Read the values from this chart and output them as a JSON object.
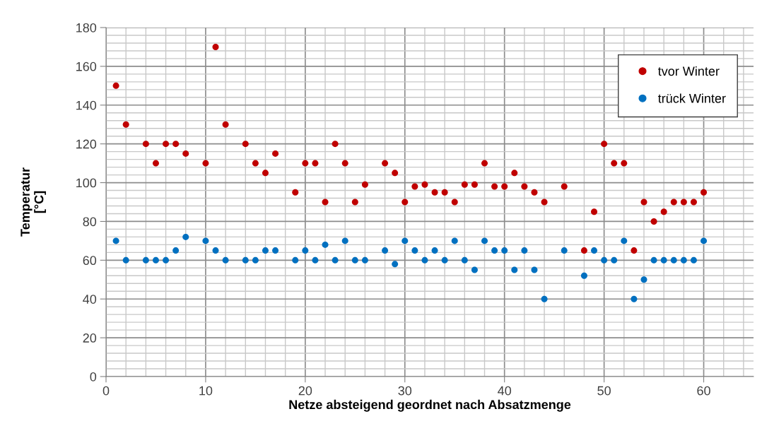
{
  "chart_data": {
    "type": "scatter",
    "xlabel": "Netze absteigend geordnet nach Absatzmenge",
    "ylabel": "Temperatur\n[°C]",
    "x": [
      1,
      2,
      4,
      5,
      6,
      7,
      8,
      10,
      11,
      12,
      14,
      15,
      16,
      17,
      19,
      20,
      21,
      22,
      23,
      24,
      25,
      26,
      28,
      29,
      30,
      31,
      32,
      33,
      34,
      35,
      36,
      37,
      38,
      39,
      40,
      41,
      42,
      43,
      44,
      46,
      48,
      49,
      50,
      51,
      52,
      53,
      54,
      55,
      56,
      57,
      58,
      59,
      60
    ],
    "series": [
      {
        "name": "tvor Winter",
        "color": "#c00000",
        "values": [
          150,
          130,
          120,
          110,
          120,
          120,
          115,
          110,
          170,
          130,
          120,
          110,
          105,
          115,
          95,
          110,
          110,
          90,
          120,
          110,
          90,
          99,
          110,
          105,
          90,
          98,
          99,
          95,
          95,
          90,
          99,
          99,
          110,
          98,
          98,
          105,
          98,
          95,
          90,
          98,
          65,
          85,
          120,
          110,
          110,
          65,
          90,
          80,
          85,
          90,
          90,
          90,
          95
        ]
      },
      {
        "name": "trück Winter",
        "color": "#0070c0",
        "values": [
          70,
          60,
          60,
          60,
          60,
          65,
          72,
          70,
          65,
          60,
          60,
          60,
          65,
          65,
          60,
          65,
          60,
          68,
          60,
          70,
          60,
          60,
          65,
          58,
          70,
          65,
          60,
          65,
          60,
          70,
          60,
          55,
          70,
          65,
          65,
          55,
          65,
          55,
          40,
          65,
          52,
          65,
          60,
          60,
          70,
          40,
          50,
          60,
          60,
          60,
          60,
          60,
          70
        ]
      }
    ],
    "xlim": [
      0,
      65
    ],
    "xticks": [
      0,
      {
        "value": 2,
        "label": null
      },
      {
        "value": 4,
        "label": null
      },
      {
        "value": 6,
        "label": null
      },
      {
        "value": 8,
        "label": null
      },
      10,
      {
        "value": 12,
        "label": null
      },
      {
        "value": 14,
        "label": null
      },
      {
        "value": 16,
        "label": null
      },
      {
        "value": 18,
        "label": null
      },
      20,
      {
        "value": 22,
        "label": null
      },
      {
        "value": 24,
        "label": null
      },
      {
        "value": 26,
        "label": null
      },
      {
        "value": 28,
        "label": null
      },
      30,
      {
        "value": 32,
        "label": null
      },
      {
        "value": 34,
        "label": null
      },
      {
        "value": 36,
        "label": null
      },
      {
        "value": 38,
        "label": null
      },
      40,
      {
        "value": 42,
        "label": null
      },
      {
        "value": 44,
        "label": null
      },
      {
        "value": 46,
        "label": null
      },
      {
        "value": 48,
        "label": null
      },
      50,
      {
        "value": 52,
        "label": null
      },
      {
        "value": 54,
        "label": null
      },
      {
        "value": 56,
        "label": null
      },
      {
        "value": 58,
        "label": null
      },
      60,
      {
        "value": 62,
        "label": null
      },
      {
        "value": 64,
        "label": null
      }
    ],
    "ylim": [
      0,
      180
    ],
    "yticks": [
      0,
      {
        "value": 4,
        "label": null
      },
      {
        "value": 8,
        "label": null
      },
      {
        "value": 12,
        "label": null
      },
      {
        "value": 16,
        "label": null
      },
      20,
      {
        "value": 24,
        "label": null
      },
      {
        "value": 28,
        "label": null
      },
      {
        "value": 32,
        "label": null
      },
      {
        "value": 36,
        "label": null
      },
      40,
      {
        "value": 44,
        "label": null
      },
      {
        "value": 48,
        "label": null
      },
      {
        "value": 52,
        "label": null
      },
      {
        "value": 56,
        "label": null
      },
      60,
      {
        "value": 64,
        "label": null
      },
      {
        "value": 68,
        "label": null
      },
      {
        "value": 72,
        "label": null
      },
      {
        "value": 76,
        "label": null
      },
      80,
      {
        "value": 84,
        "label": null
      },
      {
        "value": 88,
        "label": null
      },
      {
        "value": 92,
        "label": null
      },
      {
        "value": 96,
        "label": null
      },
      100,
      {
        "value": 104,
        "label": null
      },
      {
        "value": 108,
        "label": null
      },
      {
        "value": 112,
        "label": null
      },
      {
        "value": 116,
        "label": null
      },
      120,
      {
        "value": 124,
        "label": null
      },
      {
        "value": 128,
        "label": null
      },
      {
        "value": 132,
        "label": null
      },
      {
        "value": 136,
        "label": null
      },
      140,
      {
        "value": 144,
        "label": null
      },
      {
        "value": 148,
        "label": null
      },
      {
        "value": 152,
        "label": null
      },
      {
        "value": 156,
        "label": null
      },
      160,
      {
        "value": 164,
        "label": null
      },
      {
        "value": 168,
        "label": null
      },
      {
        "value": 172,
        "label": null
      },
      {
        "value": 176,
        "label": null
      },
      180
    ],
    "grid": true,
    "legend": "top right",
    "marker": "circle"
  }
}
